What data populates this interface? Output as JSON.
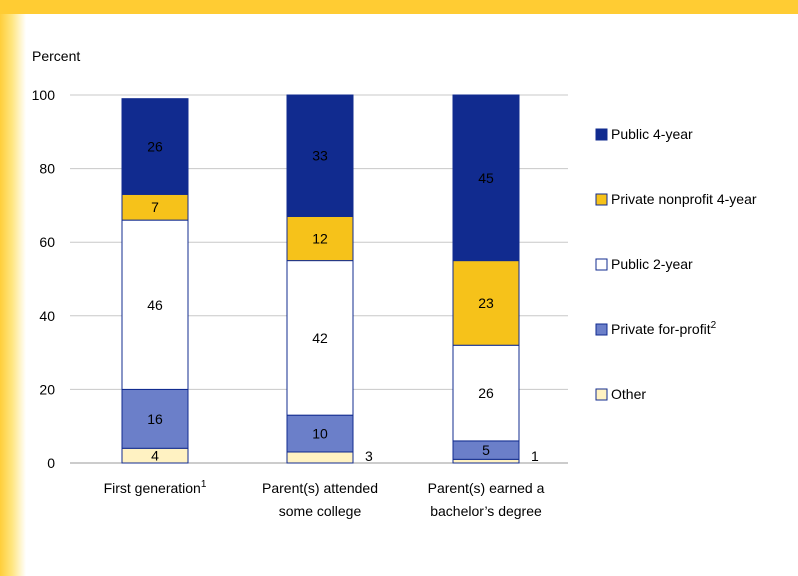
{
  "chart_data": {
    "type": "bar",
    "stacked": true,
    "ylabel": "Percent",
    "ylim": [
      0,
      100
    ],
    "yticks": [
      0,
      20,
      40,
      60,
      80,
      100
    ],
    "grid": true,
    "legend_position": "right",
    "categories": [
      {
        "lines": [
          "First generation"
        ],
        "sup": "1"
      },
      {
        "lines": [
          "Parent(s) attended",
          "some college"
        ],
        "sup": ""
      },
      {
        "lines": [
          "Parent(s) earned a",
          "bachelor’s degree"
        ],
        "sup": ""
      }
    ],
    "series": [
      {
        "name": "Other",
        "sup": "",
        "color": "#fff2c2",
        "label_color": "#000000",
        "values": [
          4,
          3,
          1
        ],
        "label_outside": [
          false,
          true,
          true
        ]
      },
      {
        "name": "Private for-profit",
        "sup": "2",
        "color": "#6b7fc9",
        "label_color": "#ffffff",
        "values": [
          16,
          10,
          5
        ],
        "label_outside": [
          false,
          false,
          false
        ]
      },
      {
        "name": "Public 2-year",
        "sup": "",
        "color": "#ffffff",
        "label_color": "#000000",
        "values": [
          46,
          42,
          26
        ],
        "label_outside": [
          false,
          false,
          false
        ]
      },
      {
        "name": "Private nonprofit 4-year",
        "sup": "",
        "color": "#f6c21a",
        "label_color": "#000000",
        "values": [
          7,
          12,
          23
        ],
        "label_outside": [
          false,
          false,
          false
        ]
      },
      {
        "name": "Public 4-year",
        "sup": "",
        "color": "#112b8f",
        "label_color": "#ffffff",
        "values": [
          26,
          33,
          45
        ],
        "label_outside": [
          false,
          false,
          false
        ]
      }
    ],
    "bar_edge_color": "#112b8f"
  }
}
